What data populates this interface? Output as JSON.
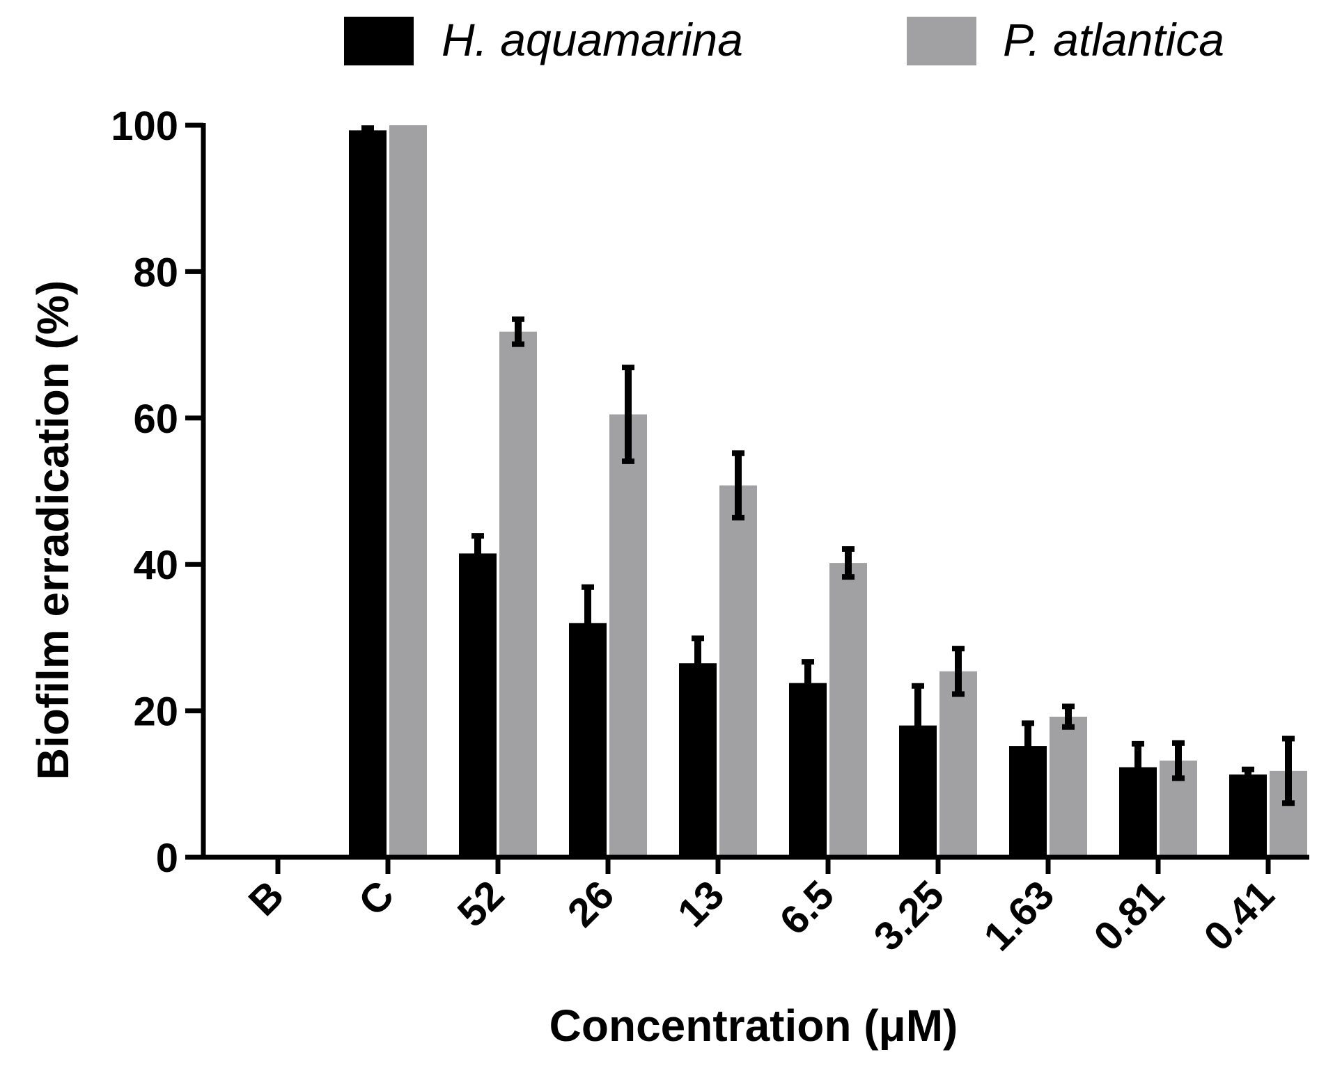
{
  "chart_data": {
    "type": "bar",
    "categories": [
      "B",
      "C",
      "52",
      "26",
      "13",
      "6.5",
      "3.25",
      "1.63",
      "0.81",
      "0.41"
    ],
    "series": [
      {
        "name": "H. aquamarina",
        "color": "#000000",
        "values": [
          0,
          99.3,
          41.5,
          32.0,
          26.5,
          23.8,
          18.0,
          15.2,
          12.3,
          11.3
        ],
        "errors": [
          0,
          0.4,
          2.5,
          5.0,
          3.5,
          3.0,
          5.5,
          3.2,
          3.3,
          0.8
        ]
      },
      {
        "name": "P. atlantica",
        "color": "#a1a1a4",
        "values": [
          0,
          100,
          71.8,
          60.5,
          50.8,
          40.2,
          25.4,
          19.2,
          13.2,
          11.8
        ],
        "errors": [
          0,
          0,
          1.8,
          6.5,
          4.5,
          2.0,
          3.2,
          1.5,
          2.5,
          4.5
        ]
      }
    ],
    "xlabel": "Concentration (μM)",
    "ylabel": "Biofilm erradication (%)",
    "ylim": [
      0,
      100
    ],
    "yticks": [
      "0",
      "20",
      "40",
      "60",
      "80",
      "100"
    ],
    "legend_position": "top"
  }
}
